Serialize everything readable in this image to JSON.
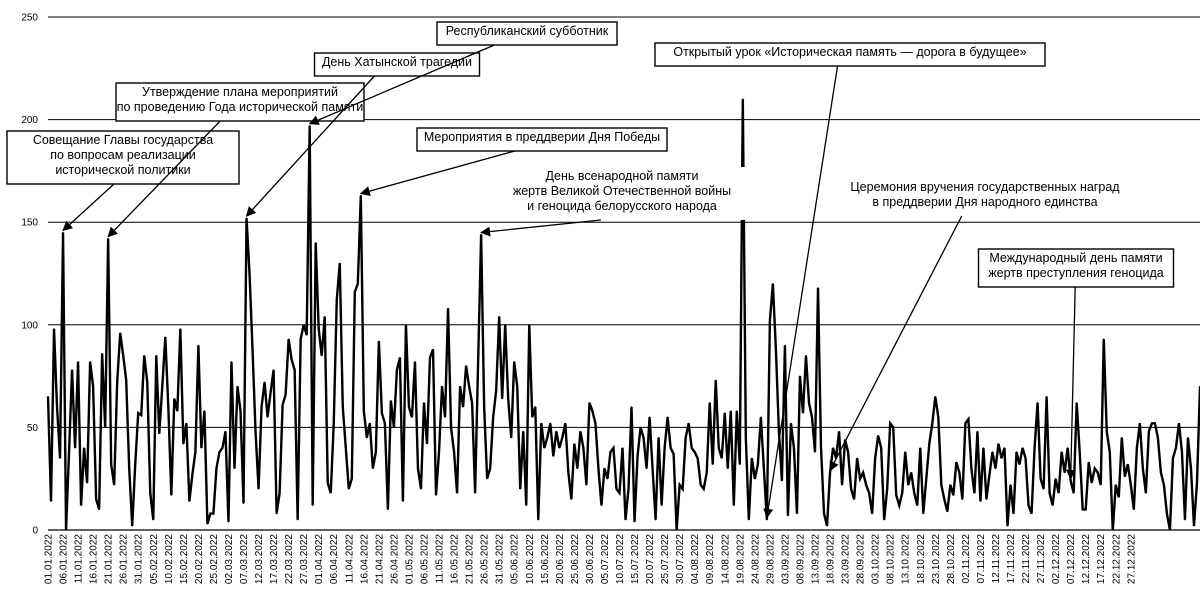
{
  "chart_data": {
    "type": "line",
    "title": "",
    "xlabel": "",
    "ylabel": "",
    "ylim": [
      0,
      250
    ],
    "y_ticks": [
      0,
      50,
      100,
      150,
      200,
      250
    ],
    "grid": true,
    "series_color": "#000000",
    "x_tick_labels": [
      "01.01.2022",
      "06.01.2022",
      "11.01.2022",
      "16.01.2022",
      "21.01.2022",
      "26.01.2022",
      "31.01.2022",
      "05.02.2022",
      "10.02.2022",
      "15.02.2022",
      "20.02.2022",
      "25.02.2022",
      "02.03.2022",
      "07.03.2022",
      "12.03.2022",
      "17.03.2022",
      "22.03.2022",
      "27.03.2022",
      "01.04.2022",
      "06.04.2022",
      "11.04.2022",
      "16.04.2022",
      "21.04.2022",
      "26.04.2022",
      "01.05.2022",
      "06.05.2022",
      "11.05.2022",
      "16.05.2022",
      "21.05.2022",
      "26.05.2022",
      "31.05.2022",
      "05.06.2022",
      "10.06.2022",
      "15.06.2022",
      "20.06.2022",
      "25.06.2022",
      "30.06.2022",
      "05.07.2022",
      "10.07.2022",
      "15.07.2022",
      "20.07.2022",
      "25.07.2022",
      "30.07.2022",
      "04.08.2022",
      "09.08.2022",
      "14.08.2022",
      "19.08.2022",
      "24.08.2022",
      "29.08.2022",
      "03.09.2022",
      "08.09.2022",
      "13.09.2022",
      "18.09.2022",
      "23.09.2022",
      "28.09.2022",
      "03.10.2022",
      "08.10.2022",
      "13.10.2022",
      "18.10.2022",
      "23.10.2022",
      "28.10.2022",
      "02.11.2022",
      "07.11.2022",
      "12.11.2022",
      "17.11.2022",
      "22.11.2022",
      "27.11.2022",
      "02.12.2022",
      "07.12.2022",
      "12.12.2022",
      "17.12.2022",
      "22.12.2022",
      "27.12.2022"
    ],
    "series": [
      {
        "values": [
          65,
          14,
          98,
          60,
          35,
          145,
          0,
          38,
          78,
          40,
          82,
          12,
          40,
          23,
          82,
          70,
          15,
          10,
          86,
          50,
          142,
          32,
          22,
          72,
          96,
          85,
          73,
          30,
          2,
          32,
          57,
          56,
          85,
          72,
          18,
          5,
          85,
          47,
          70,
          94,
          60,
          17,
          64,
          58,
          98,
          42,
          52,
          14,
          27,
          38,
          90,
          40,
          58,
          3,
          8,
          8,
          30,
          38,
          40,
          48,
          4,
          82,
          30,
          70,
          58,
          13,
          152,
          125,
          88,
          48,
          20,
          60,
          72,
          55,
          67,
          78,
          8,
          18,
          61,
          66,
          93,
          83,
          78,
          5,
          93,
          100,
          95,
          197,
          12,
          140,
          98,
          85,
          104,
          23,
          18,
          52,
          112,
          130,
          60,
          40,
          20,
          25,
          116,
          120,
          163,
          58,
          45,
          52,
          30,
          38,
          92,
          57,
          52,
          10,
          63,
          50,
          78,
          84,
          14,
          100,
          60,
          55,
          82,
          30,
          20,
          62,
          42,
          84,
          88,
          17,
          38,
          70,
          55,
          108,
          50,
          38,
          18,
          70,
          60,
          80,
          70,
          62,
          18,
          82,
          144,
          60,
          25,
          30,
          55,
          68,
          104,
          64,
          100,
          64,
          45,
          82,
          70,
          20,
          48,
          12,
          100,
          55,
          60,
          5,
          52,
          40,
          45,
          52,
          36,
          48,
          40,
          45,
          52,
          28,
          15,
          42,
          30,
          48,
          40,
          22,
          62,
          58,
          52,
          30,
          12,
          30,
          25,
          38,
          40,
          20,
          18,
          40,
          5,
          20,
          60,
          4,
          36,
          50,
          45,
          30,
          55,
          30,
          5,
          45,
          12,
          40,
          55,
          40,
          37,
          0,
          22,
          20,
          45,
          52,
          40,
          38,
          35,
          22,
          20,
          28,
          62,
          32,
          73,
          40,
          35,
          57,
          30,
          58,
          12,
          58,
          32,
          210,
          45,
          5,
          35,
          25,
          32,
          55,
          30,
          5,
          102,
          120,
          88,
          48,
          24,
          90,
          7,
          52,
          40,
          8,
          75,
          57,
          85,
          62,
          55,
          38,
          118,
          40,
          8,
          2,
          28,
          40,
          35,
          48,
          22,
          44,
          38,
          20,
          15,
          35,
          25,
          28,
          22,
          18,
          8,
          35,
          46,
          40,
          5,
          20,
          52,
          50,
          17,
          12,
          18,
          38,
          22,
          28,
          18,
          12,
          40,
          8,
          25,
          42,
          52,
          65,
          55,
          22,
          15,
          9,
          22,
          17,
          33,
          28,
          15,
          52,
          54,
          30,
          18,
          48,
          14,
          40,
          15,
          27,
          38,
          30,
          42,
          35,
          40,
          2,
          22,
          8,
          38,
          32,
          40,
          35,
          12,
          8,
          40,
          62,
          25,
          20,
          65,
          18,
          12,
          25,
          18,
          38,
          28,
          40,
          24,
          18,
          62,
          38,
          10,
          10,
          33,
          23,
          30,
          28,
          22,
          93,
          48,
          38,
          0,
          22,
          16,
          45,
          26,
          32,
          22,
          10,
          40,
          52,
          30,
          18,
          48,
          52,
          52,
          45,
          28,
          22,
          8,
          0,
          35,
          40,
          52,
          38,
          5,
          45,
          30,
          2,
          23,
          70
        ]
      }
    ],
    "annotations": [
      {
        "lines": [
          "Совещание Главы государства",
          "по вопросам реализации",
          "исторической политики"
        ],
        "target_index": 5,
        "boxed": true
      },
      {
        "lines": [
          "Утверждение плана мероприятий",
          "по проведению Года исторической памяти"
        ],
        "target_index": 20,
        "boxed": true
      },
      {
        "lines": [
          "День Хатынской трагедии"
        ],
        "target_index": 66,
        "boxed": true
      },
      {
        "lines": [
          "Республиканский субботник"
        ],
        "target_index": 87,
        "boxed": true
      },
      {
        "lines": [
          "Мероприятия в преддверии Дня Победы"
        ],
        "target_index": 104,
        "boxed": true
      },
      {
        "lines": [
          "День всенародной памяти",
          "жертв Великой Отечественной войны",
          "и геноцида белорусского народа"
        ],
        "target_index": 144,
        "boxed": false
      },
      {
        "lines": [
          "Открытый урок «Историческая память — дорога в будущее»"
        ],
        "target_index": 239,
        "boxed": true
      },
      {
        "lines": [
          "Церемония вручения государственных наград",
          "в преддверии Дня народного единства"
        ],
        "target_index": 260,
        "boxed": false
      },
      {
        "lines": [
          "Международный день памяти",
          "жертв преступления геноцида"
        ],
        "target_index": 340,
        "boxed": true
      }
    ]
  }
}
